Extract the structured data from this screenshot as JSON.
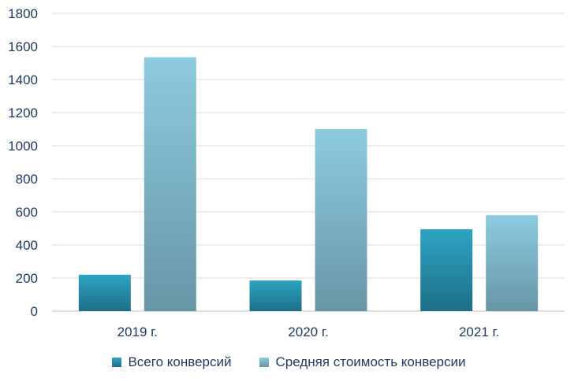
{
  "chart_data": {
    "type": "bar",
    "categories": [
      "2019 г.",
      "2020 г.",
      "2021 г."
    ],
    "series": [
      {
        "name": "Всего конверсий",
        "values": [
          220,
          185,
          495
        ],
        "color_top": "#2ea3c4",
        "color_bottom": "#1d6f87"
      },
      {
        "name": "Средняя стоимость конверсии",
        "values": [
          1535,
          1100,
          580
        ],
        "color_top": "#8ccbe0",
        "color_bottom": "#6896a6"
      }
    ],
    "ylim": [
      0,
      1800
    ],
    "yticks": [
      0,
      200,
      400,
      600,
      800,
      1000,
      1200,
      1400,
      1600,
      1800
    ],
    "grid": true,
    "legend": "bottom",
    "colors": {
      "text": "#1f3864",
      "grid": "#d9d9d9",
      "axis": "#bfbfbf"
    }
  }
}
